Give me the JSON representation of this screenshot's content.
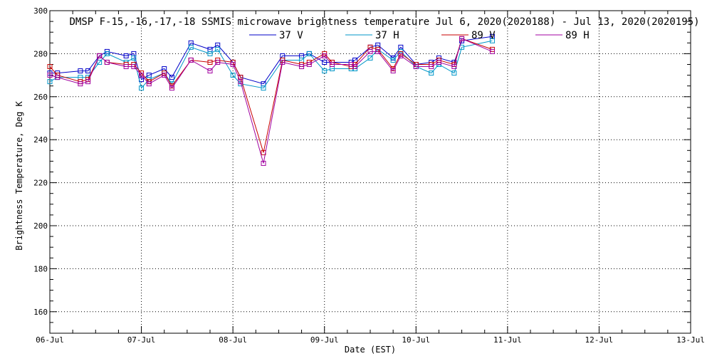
{
  "chart_data": {
    "type": "line",
    "title": "DMSP F-15,-16,-17,-18 SSMIS microwave brightness temperature Jul  6, 2020(2020188) - Jul 13, 2020(2020195)",
    "xlabel": "Date (EST)",
    "ylabel": "Brightness Temperature, Deg K",
    "xlim": [
      "2020-07-06",
      "2020-07-13"
    ],
    "ylim": [
      150,
      300
    ],
    "x_ticks": [
      "06-Jul",
      "07-Jul",
      "08-Jul",
      "09-Jul",
      "10-Jul",
      "11-Jul",
      "12-Jul",
      "13-Jul"
    ],
    "y_ticks": [
      160,
      180,
      200,
      220,
      240,
      260,
      280,
      300
    ],
    "grid": true,
    "legend_position": "top",
    "x": [
      "2020-07-06 00:00",
      "2020-07-06 02:00",
      "2020-07-06 08:00",
      "2020-07-06 10:00",
      "2020-07-06 13:00",
      "2020-07-06 15:00",
      "2020-07-06 20:00",
      "2020-07-06 22:00",
      "2020-07-07 00:00",
      "2020-07-07 02:00",
      "2020-07-07 06:00",
      "2020-07-07 08:00",
      "2020-07-07 13:00",
      "2020-07-07 18:00",
      "2020-07-07 20:00",
      "2020-07-08 00:00",
      "2020-07-08 02:00",
      "2020-07-08 08:00",
      "2020-07-08 13:00",
      "2020-07-08 18:00",
      "2020-07-08 20:00",
      "2020-07-09 00:00",
      "2020-07-09 02:00",
      "2020-07-09 07:00",
      "2020-07-09 08:00",
      "2020-07-09 12:00",
      "2020-07-09 14:00",
      "2020-07-09 18:00",
      "2020-07-09 20:00",
      "2020-07-10 00:00",
      "2020-07-10 04:00",
      "2020-07-10 06:00",
      "2020-07-10 10:00",
      "2020-07-10 12:00",
      "2020-07-10 20:00"
    ],
    "series": [
      {
        "name": "37 V",
        "color": "#0000c8",
        "values": [
          271,
          271,
          272,
          272,
          279,
          281,
          279,
          280,
          268,
          270,
          273,
          269,
          285,
          282,
          284,
          276,
          269,
          266,
          279,
          279,
          280,
          276,
          276,
          276,
          277,
          283,
          284,
          278,
          283,
          275,
          276,
          278,
          276,
          286,
          288
        ]
      },
      {
        "name": "37 H",
        "color": "#0096c8",
        "values": [
          267,
          269,
          269,
          269,
          276,
          280,
          276,
          278,
          264,
          268,
          271,
          266,
          283,
          280,
          282,
          270,
          266,
          264,
          277,
          277,
          280,
          272,
          273,
          273,
          273,
          278,
          282,
          277,
          281,
          274,
          271,
          275,
          271,
          283,
          286
        ]
      },
      {
        "name": "89 V",
        "color": "#c80000",
        "values": [
          274,
          270,
          267,
          268,
          279,
          276,
          275,
          275,
          271,
          267,
          271,
          265,
          277,
          276,
          277,
          276,
          269,
          234,
          277,
          275,
          276,
          280,
          276,
          274,
          275,
          283,
          282,
          273,
          280,
          275,
          275,
          277,
          275,
          287,
          282
        ]
      },
      {
        "name": "89 H",
        "color": "#a000a0",
        "values": [
          270,
          269,
          266,
          267,
          279,
          276,
          274,
          274,
          270,
          266,
          270,
          264,
          277,
          272,
          276,
          275,
          267,
          229,
          276,
          274,
          275,
          279,
          275,
          275,
          274,
          281,
          281,
          272,
          279,
          274,
          274,
          276,
          274,
          287,
          281
        ]
      }
    ]
  }
}
